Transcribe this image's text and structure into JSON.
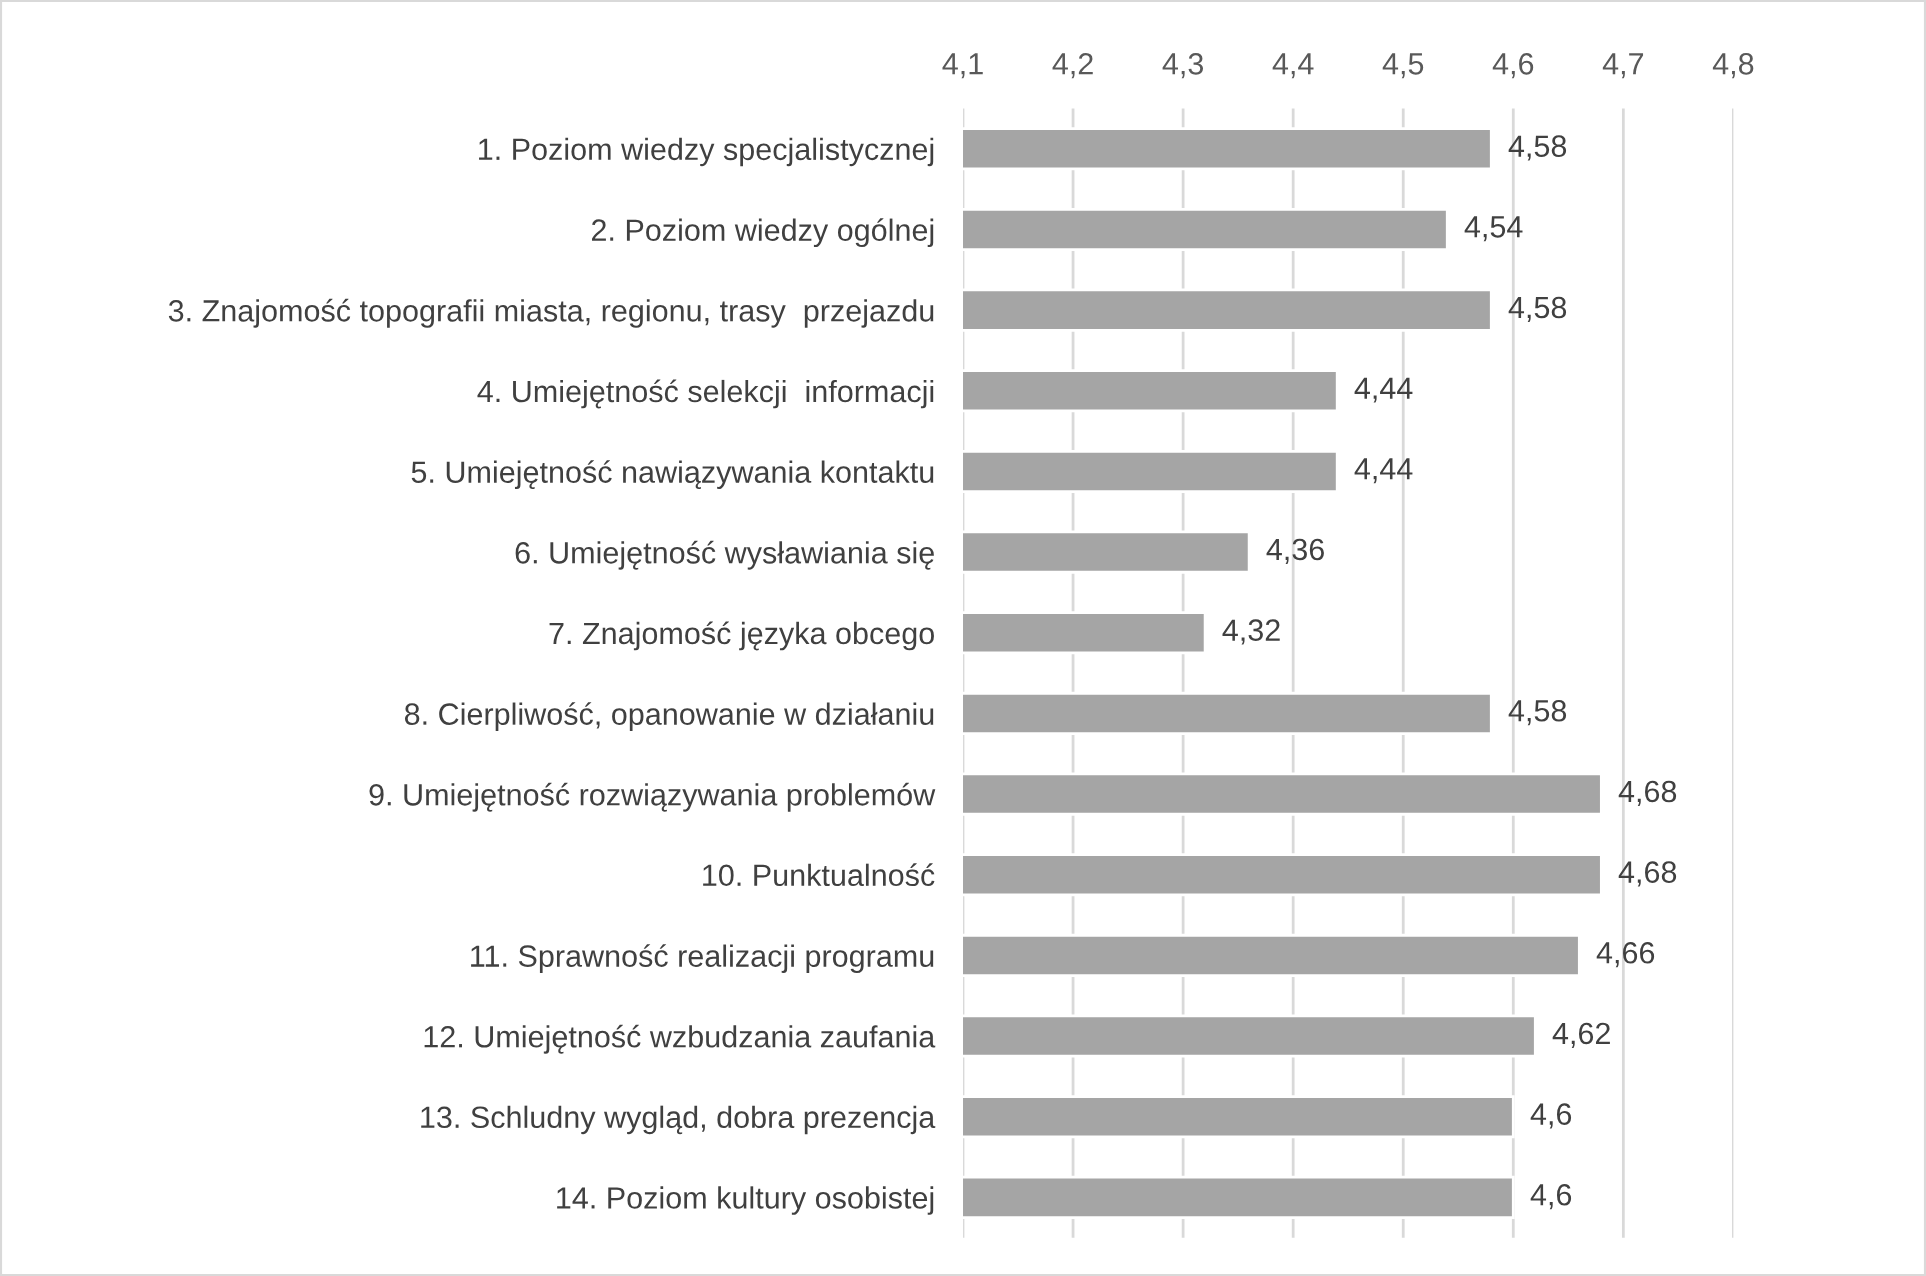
{
  "chart_data": {
    "type": "bar",
    "orientation": "horizontal",
    "categories": [
      "1. Poziom wiedzy specjalistycznej",
      "2. Poziom wiedzy ogólnej",
      "3. Znajomość topografii miasta, regionu, trasy  przejazdu",
      "4. Umiejętność selekcji  informacji",
      "5. Umiejętność nawiązywania kontaktu",
      "6. Umiejętność wysławiania się",
      "7. Znajomość języka obcego",
      "8. Cierpliwość, opanowanie w działaniu",
      "9. Umiejętność rozwiązywania problemów",
      "10. Punktualność",
      "11. Sprawność realizacji programu",
      "12. Umiejętność wzbudzania zaufania",
      "13. Schludny wygląd, dobra prezencja",
      "14. Poziom kultury osobistej"
    ],
    "values": [
      4.58,
      4.54,
      4.58,
      4.44,
      4.44,
      4.36,
      4.32,
      4.58,
      4.68,
      4.68,
      4.66,
      4.62,
      4.6,
      4.6
    ],
    "value_labels": [
      "4,58",
      "4,54",
      "4,58",
      "4,44",
      "4,44",
      "4,36",
      "4,32",
      "4,58",
      "4,68",
      "4,68",
      "4,66",
      "4,62",
      "4,6",
      "4,6"
    ],
    "color": "#a5a5a5",
    "xlim": [
      4.1,
      4.8
    ],
    "xticks": [
      {
        "value": 4.1,
        "label": "4,1"
      },
      {
        "value": 4.2,
        "label": "4,2"
      },
      {
        "value": 4.3,
        "label": "4,3"
      },
      {
        "value": 4.4,
        "label": "4,4"
      },
      {
        "value": 4.5,
        "label": "4,5"
      },
      {
        "value": 4.6,
        "label": "4,6"
      },
      {
        "value": 4.7,
        "label": "4,7"
      },
      {
        "value": 4.8,
        "label": "4,8"
      }
    ],
    "grid": "x"
  }
}
